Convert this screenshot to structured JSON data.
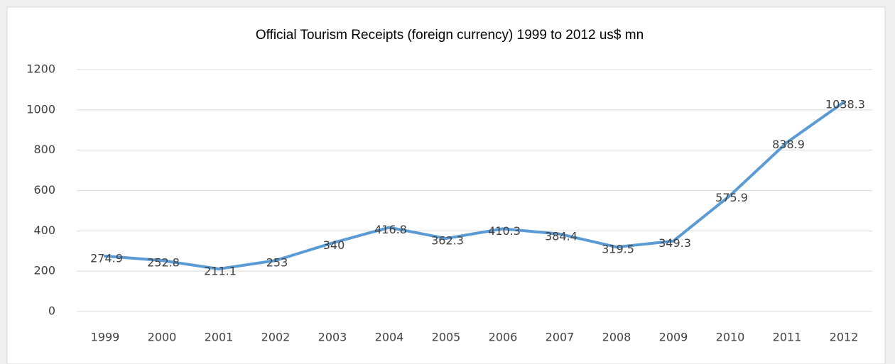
{
  "chart_data": {
    "type": "line",
    "title": "Official Tourism Receipts (foreign currency) 1999 to 2012 us$ mn",
    "categories": [
      "1999",
      "2000",
      "2001",
      "2002",
      "2003",
      "2004",
      "2005",
      "2006",
      "2007",
      "2008",
      "2009",
      "2010",
      "2011",
      "2012"
    ],
    "values": [
      274.9,
      252.8,
      211.1,
      253,
      340,
      416.8,
      362.3,
      410.3,
      384.4,
      319.5,
      349.3,
      575.9,
      838.9,
      1038.3
    ],
    "color": "#5b9bd5",
    "ylim": [
      0,
      1200
    ],
    "yticks": [
      0,
      200,
      400,
      600,
      800,
      1000,
      1200
    ],
    "grid": true
  }
}
